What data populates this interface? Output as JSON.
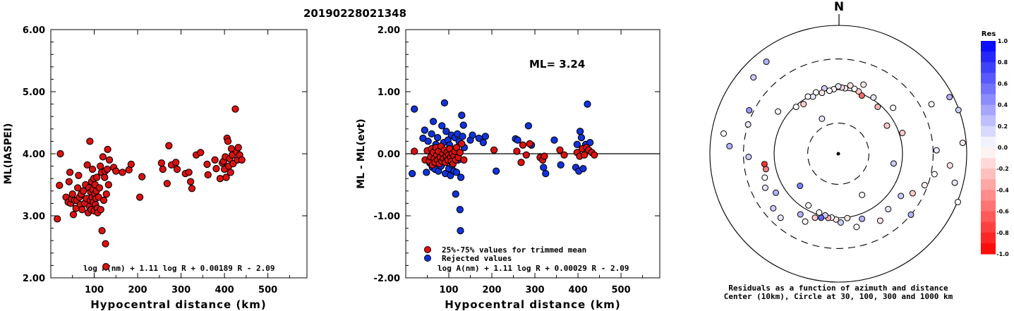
{
  "title": "20190228021348",
  "colors": {
    "red": "#dd1111",
    "blue": "#1133dd",
    "edge": "#000000"
  },
  "chart_data": [
    {
      "id": "left",
      "type": "scatter",
      "xlabel": "Hypocentral distance (km)",
      "ylabel": "ML(IASPEI)",
      "xlim": [
        0,
        590
      ],
      "ylim": [
        2.0,
        6.0
      ],
      "xticks": [
        "100",
        "200",
        "300",
        "400",
        "500"
      ],
      "yticks": [
        "2.00",
        "3.00",
        "4.00",
        "5.00",
        "6.00"
      ],
      "formula": "log A(nm) + 1.11 log R + 0.00189 R - 2.09",
      "points": [
        [
          15,
          2.95
        ],
        [
          20,
          3.49
        ],
        [
          22,
          4.0
        ],
        [
          35,
          3.3
        ],
        [
          40,
          3.22
        ],
        [
          42,
          3.55
        ],
        [
          44,
          3.7
        ],
        [
          46,
          3.2
        ],
        [
          48,
          3.27
        ],
        [
          50,
          3.35
        ],
        [
          52,
          3.02
        ],
        [
          55,
          3.25
        ],
        [
          58,
          3.12
        ],
        [
          60,
          3.25
        ],
        [
          62,
          3.45
        ],
        [
          64,
          3.65
        ],
        [
          66,
          3.3
        ],
        [
          68,
          3.18
        ],
        [
          70,
          3.35
        ],
        [
          72,
          3.1
        ],
        [
          75,
          3.4
        ],
        [
          78,
          3.2
        ],
        [
          80,
          3.5
        ],
        [
          82,
          3.28
        ],
        [
          84,
          3.82
        ],
        [
          86,
          3.05
        ],
        [
          88,
          3.45
        ],
        [
          89,
          3.15
        ],
        [
          90,
          4.2
        ],
        [
          91,
          3.25
        ],
        [
          92,
          3.38
        ],
        [
          93,
          3.1
        ],
        [
          94,
          3.55
        ],
        [
          95,
          3.3
        ],
        [
          96,
          3.75
        ],
        [
          97,
          3.42
        ],
        [
          98,
          3.22
        ],
        [
          99,
          3.6
        ],
        [
          100,
          3.08
        ],
        [
          101,
          3.35
        ],
        [
          102,
          3.5
        ],
        [
          103,
          3.18
        ],
        [
          104,
          3.28
        ],
        [
          105,
          3.4
        ],
        [
          106,
          3.62
        ],
        [
          107,
          3.12
        ],
        [
          108,
          3.05
        ],
        [
          110,
          3.3
        ],
        [
          112,
          3.45
        ],
        [
          114,
          3.8
        ],
        [
          115,
          3.1
        ],
        [
          117,
          3.7
        ],
        [
          118,
          2.76
        ],
        [
          120,
          3.95
        ],
        [
          122,
          3.25
        ],
        [
          124,
          3.62
        ],
        [
          125,
          3.72
        ],
        [
          126,
          2.55
        ],
        [
          127,
          2.18
        ],
        [
          128,
          3.35
        ],
        [
          130,
          3.75
        ],
        [
          131,
          4.07
        ],
        [
          133,
          3.5
        ],
        [
          135,
          3.9
        ],
        [
          145,
          3.78
        ],
        [
          150,
          3.72
        ],
        [
          165,
          3.7
        ],
        [
          180,
          3.74
        ],
        [
          185,
          3.83
        ],
        [
          205,
          3.3
        ],
        [
          210,
          3.63
        ],
        [
          255,
          3.85
        ],
        [
          258,
          3.75
        ],
        [
          268,
          3.52
        ],
        [
          272,
          4.13
        ],
        [
          278,
          3.82
        ],
        [
          288,
          3.86
        ],
        [
          291,
          3.75
        ],
        [
          310,
          3.68
        ],
        [
          318,
          3.7
        ],
        [
          322,
          3.55
        ],
        [
          325,
          3.44
        ],
        [
          335,
          3.98
        ],
        [
          345,
          4.02
        ],
        [
          360,
          3.83
        ],
        [
          362,
          3.66
        ],
        [
          378,
          3.9
        ],
        [
          381,
          3.76
        ],
        [
          390,
          3.6
        ],
        [
          395,
          3.85
        ],
        [
          398,
          3.88
        ],
        [
          400,
          3.75
        ],
        [
          402,
          3.95
        ],
        [
          404,
          3.62
        ],
        [
          406,
          4.25
        ],
        [
          408,
          4.2
        ],
        [
          410,
          3.8
        ],
        [
          412,
          3.92
        ],
        [
          414,
          3.7
        ],
        [
          416,
          4.08
        ],
        [
          418,
          3.98
        ],
        [
          420,
          3.84
        ],
        [
          425,
          4.72
        ],
        [
          428,
          4.03
        ],
        [
          430,
          3.9
        ],
        [
          432,
          4.1
        ],
        [
          435,
          3.98
        ],
        [
          440,
          3.9
        ]
      ]
    },
    {
      "id": "middle",
      "type": "scatter",
      "xlabel": "Hypocentral distance (km)",
      "ylabel": "ML - ML(evt)",
      "xlim": [
        0,
        590
      ],
      "ylim": [
        -2.0,
        2.0
      ],
      "xticks": [
        "100",
        "200",
        "300",
        "400",
        "500"
      ],
      "yticks": [
        "-2.00",
        "-1.00",
        "0.00",
        "1.00",
        "2.00"
      ],
      "annotation": "ML= 3.24",
      "legend": [
        "25%-75% values for trimmed mean",
        "Rejected values"
      ],
      "formula": "log A(nm) + 1.11 log R + 0.00029 R - 2.09",
      "trimmed": [
        [
          20,
          0.04
        ],
        [
          45,
          -0.1
        ],
        [
          50,
          0.05
        ],
        [
          55,
          -0.12
        ],
        [
          58,
          -0.05
        ],
        [
          60,
          0.08
        ],
        [
          62,
          -0.18
        ],
        [
          64,
          0.02
        ],
        [
          66,
          -0.08
        ],
        [
          68,
          -0.14
        ],
        [
          70,
          0.1
        ],
        [
          72,
          -0.02
        ],
        [
          74,
          -0.1
        ],
        [
          76,
          0.04
        ],
        [
          78,
          -0.16
        ],
        [
          80,
          -0.06
        ],
        [
          82,
          0.12
        ],
        [
          84,
          -0.12
        ],
        [
          86,
          0.0
        ],
        [
          88,
          -0.08
        ],
        [
          90,
          0.06
        ],
        [
          92,
          -0.14
        ],
        [
          94,
          -0.04
        ],
        [
          96,
          0.02
        ],
        [
          98,
          -0.1
        ],
        [
          100,
          -0.02
        ],
        [
          102,
          0.08
        ],
        [
          104,
          -0.06
        ],
        [
          106,
          -0.12
        ],
        [
          108,
          0.0
        ],
        [
          110,
          -0.16
        ],
        [
          112,
          -0.04
        ],
        [
          114,
          0.04
        ],
        [
          116,
          -0.1
        ],
        [
          118,
          0.1
        ],
        [
          122,
          -0.06
        ],
        [
          126,
          0.02
        ],
        [
          130,
          0.16
        ],
        [
          135,
          -0.1
        ],
        [
          205,
          0.06
        ],
        [
          258,
          0.04
        ],
        [
          268,
          -0.14
        ],
        [
          272,
          0.14
        ],
        [
          280,
          -0.02
        ],
        [
          288,
          0.16
        ],
        [
          312,
          -0.06
        ],
        [
          318,
          -0.1
        ],
        [
          322,
          -0.04
        ],
        [
          358,
          0.06
        ],
        [
          368,
          -0.02
        ],
        [
          398,
          0.02
        ],
        [
          404,
          -0.04
        ],
        [
          410,
          0.08
        ],
        [
          415,
          -0.02
        ],
        [
          420,
          0.1
        ],
        [
          425,
          0.06
        ],
        [
          432,
          0.02
        ],
        [
          438,
          -0.02
        ]
      ],
      "rejected": [
        [
          15,
          -0.32
        ],
        [
          20,
          0.72
        ],
        [
          40,
          0.25
        ],
        [
          44,
          0.38
        ],
        [
          48,
          -0.3
        ],
        [
          52,
          0.2
        ],
        [
          56,
          -0.15
        ],
        [
          60,
          0.32
        ],
        [
          62,
          -0.22
        ],
        [
          64,
          0.52
        ],
        [
          68,
          -0.25
        ],
        [
          70,
          0.15
        ],
        [
          72,
          -0.05
        ],
        [
          74,
          0.26
        ],
        [
          76,
          -0.28
        ],
        [
          78,
          0.08
        ],
        [
          82,
          -0.2
        ],
        [
          84,
          0.45
        ],
        [
          86,
          -0.12
        ],
        [
          88,
          0.18
        ],
        [
          90,
          0.82
        ],
        [
          92,
          -0.32
        ],
        [
          94,
          0.36
        ],
        [
          96,
          -0.08
        ],
        [
          98,
          0.22
        ],
        [
          100,
          -0.24
        ],
        [
          102,
          0.14
        ],
        [
          104,
          -0.35
        ],
        [
          106,
          0.3
        ],
        [
          108,
          -0.18
        ],
        [
          110,
          0.06
        ],
        [
          112,
          -0.28
        ],
        [
          114,
          0.26
        ],
        [
          116,
          -0.65
        ],
        [
          118,
          -0.3
        ],
        [
          120,
          0.32
        ],
        [
          122,
          -0.1
        ],
        [
          124,
          0.2
        ],
        [
          126,
          -0.9
        ],
        [
          127,
          -1.24
        ],
        [
          128,
          -0.38
        ],
        [
          130,
          0.62
        ],
        [
          132,
          0.28
        ],
        [
          134,
          0.46
        ],
        [
          136,
          0.1
        ],
        [
          150,
          0.22
        ],
        [
          155,
          0.3
        ],
        [
          170,
          0.25
        ],
        [
          180,
          0.18
        ],
        [
          185,
          0.28
        ],
        [
          210,
          -0.28
        ],
        [
          255,
          0.24
        ],
        [
          260,
          0.22
        ],
        [
          285,
          0.45
        ],
        [
          292,
          0.14
        ],
        [
          320,
          -0.22
        ],
        [
          325,
          -0.32
        ],
        [
          345,
          0.22
        ],
        [
          360,
          -0.18
        ],
        [
          395,
          -0.22
        ],
        [
          398,
          0.15
        ],
        [
          402,
          -0.28
        ],
        [
          405,
          0.36
        ],
        [
          408,
          0.26
        ],
        [
          412,
          -0.24
        ],
        [
          418,
          0.15
        ],
        [
          422,
          0.8
        ],
        [
          428,
          0.18
        ]
      ]
    },
    {
      "id": "polar",
      "type": "scatter",
      "top_label": "N",
      "caption_line1": "Residuals as a function of azimuth and distance",
      "caption_line2": "Center (10km), Circle at 30, 100, 300 and 1000 km",
      "colorbar_title": "Res",
      "colorbar_ticks": [
        "1.0",
        "0.8",
        "0.6",
        "0.4",
        "0.2",
        "0.0",
        "-0.2",
        "-0.4",
        "-0.6",
        "-0.8",
        "-1.0"
      ],
      "rings_km": [
        30,
        100,
        300,
        1000
      ],
      "stations": [
        [
          112,
          1020,
          0.0
        ],
        [
          104,
          740,
          0.1
        ],
        [
          85,
          880,
          -0.05
        ],
        [
          70,
          980,
          0.2
        ],
        [
          63,
          880,
          0.3
        ],
        [
          32,
          108,
          0.1
        ],
        [
          22,
          95,
          -0.6
        ],
        [
          18,
          105,
          -0.2
        ],
        [
          14,
          110,
          0.0
        ],
        [
          10,
          120,
          -0.1
        ],
        [
          6,
          106,
          0.05
        ],
        [
          3,
          108,
          -0.15
        ],
        [
          0,
          112,
          0.1
        ],
        [
          356,
          102,
          -0.05
        ],
        [
          352,
          98,
          0.0
        ],
        [
          348,
          110,
          0.2
        ],
        [
          345,
          96,
          -0.1
        ],
        [
          340,
          104,
          0.0
        ],
        [
          336,
          94,
          0.1
        ],
        [
          332,
          102,
          -0.05
        ],
        [
          325,
          88,
          -0.2
        ],
        [
          318,
          96,
          0.0
        ],
        [
          40,
          90,
          -0.3
        ],
        [
          50,
          130,
          0.0
        ],
        [
          62,
          440,
          0.0
        ],
        [
          72,
          112,
          -0.2
        ],
        [
          88,
          340,
          0.1
        ],
        [
          96,
          560,
          -0.1
        ],
        [
          102,
          340,
          0.0
        ],
        [
          110,
          270,
          -0.05
        ],
        [
          118,
          205,
          -0.2
        ],
        [
          124,
          150,
          0.2
        ],
        [
          130,
          300,
          0.3
        ],
        [
          138,
          145,
          0.1
        ],
        [
          148,
          170,
          -0.1
        ],
        [
          160,
          120,
          0.3
        ],
        [
          166,
          150,
          0.0
        ],
        [
          172,
          103,
          -0.1
        ],
        [
          178,
          118,
          0.2
        ],
        [
          182,
          106,
          -0.1
        ],
        [
          186,
          100,
          0.0
        ],
        [
          189,
          103,
          -0.3
        ],
        [
          192,
          96,
          0.2
        ],
        [
          195,
          108,
          0.6
        ],
        [
          198,
          92,
          0.0
        ],
        [
          200,
          115,
          -0.2
        ],
        [
          206,
          150,
          0.0
        ],
        [
          212,
          130,
          0.3
        ],
        [
          222,
          220,
          0.1
        ],
        [
          230,
          210,
          0.2
        ],
        [
          238,
          140,
          0.3
        ],
        [
          245,
          180,
          0.1
        ],
        [
          252,
          160,
          0.0
        ],
        [
          258,
          142,
          -0.5
        ],
        [
          262,
          145,
          -0.8
        ],
        [
          268,
          250,
          0.2
        ],
        [
          274,
          500,
          0.3
        ],
        [
          280,
          650,
          0.0
        ],
        [
          288,
          300,
          0.1
        ],
        [
          296,
          350,
          0.4
        ],
        [
          305,
          140,
          0.0
        ],
        [
          312,
          600,
          0.2
        ],
        [
          322,
          660,
          0.3
        ],
        [
          210,
          85,
          0.0
        ],
        [
          230,
          60,
          0.5
        ],
        [
          335,
          40,
          0.1
        ],
        [
          150,
          55,
          0.0
        ],
        [
          100,
          75,
          0.2
        ],
        [
          20,
          140,
          -0.1
        ],
        [
          60,
          75,
          -0.2
        ]
      ]
    }
  ]
}
